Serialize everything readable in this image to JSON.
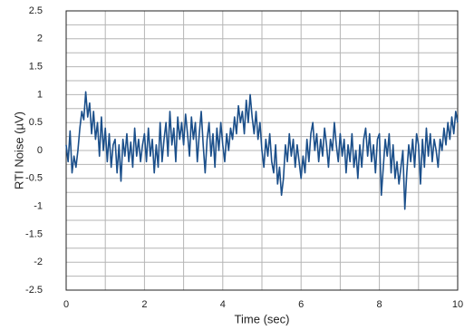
{
  "chart_data": {
    "type": "line",
    "x_label": "Time (sec)",
    "y_label": "RTI Noise (µV)",
    "color": "#1b4f8a",
    "grid": true,
    "xlim": [
      0,
      10
    ],
    "xticks": [
      0,
      2,
      4,
      6,
      8,
      10
    ],
    "xminor": [
      1,
      3,
      5,
      7,
      9
    ],
    "ylim": [
      -2.5,
      2.5
    ],
    "yticks": [
      -2.5,
      -2,
      -1.5,
      -1,
      -0.5,
      0,
      0.5,
      1,
      1.5,
      2,
      2.5
    ],
    "yminor": [
      -2.25,
      -1.75,
      -1.25,
      -0.75,
      -0.25,
      0.25,
      0.75,
      1.25,
      1.75,
      2.25
    ],
    "x": [
      0,
      0.05,
      0.1,
      0.15,
      0.2,
      0.25,
      0.3,
      0.35,
      0.4,
      0.45,
      0.5,
      0.55,
      0.6,
      0.65,
      0.7,
      0.75,
      0.8,
      0.85,
      0.9,
      0.95,
      1,
      1.05,
      1.1,
      1.15,
      1.2,
      1.25,
      1.3,
      1.35,
      1.4,
      1.45,
      1.5,
      1.55,
      1.6,
      1.65,
      1.7,
      1.75,
      1.8,
      1.85,
      1.9,
      1.95,
      2,
      2.05,
      2.1,
      2.15,
      2.2,
      2.25,
      2.3,
      2.35,
      2.4,
      2.45,
      2.5,
      2.55,
      2.6,
      2.65,
      2.7,
      2.75,
      2.8,
      2.85,
      2.9,
      2.95,
      3,
      3.05,
      3.1,
      3.15,
      3.2,
      3.25,
      3.3,
      3.35,
      3.4,
      3.45,
      3.5,
      3.55,
      3.6,
      3.65,
      3.7,
      3.75,
      3.8,
      3.85,
      3.9,
      3.95,
      4,
      4.05,
      4.1,
      4.15,
      4.2,
      4.25,
      4.3,
      4.35,
      4.4,
      4.45,
      4.5,
      4.55,
      4.6,
      4.65,
      4.7,
      4.75,
      4.8,
      4.85,
      4.9,
      4.95,
      5,
      5.05,
      5.1,
      5.15,
      5.2,
      5.25,
      5.3,
      5.35,
      5.4,
      5.45,
      5.5,
      5.55,
      5.6,
      5.65,
      5.7,
      5.75,
      5.8,
      5.85,
      5.9,
      5.95,
      6,
      6.05,
      6.1,
      6.15,
      6.2,
      6.25,
      6.3,
      6.35,
      6.4,
      6.45,
      6.5,
      6.55,
      6.6,
      6.65,
      6.7,
      6.75,
      6.8,
      6.85,
      6.9,
      6.95,
      7,
      7.05,
      7.1,
      7.15,
      7.2,
      7.25,
      7.3,
      7.35,
      7.4,
      7.45,
      7.5,
      7.55,
      7.6,
      7.65,
      7.7,
      7.75,
      7.8,
      7.85,
      7.9,
      7.95,
      8,
      8.05,
      8.1,
      8.15,
      8.2,
      8.25,
      8.3,
      8.35,
      8.4,
      8.45,
      8.5,
      8.55,
      8.6,
      8.65,
      8.7,
      8.75,
      8.8,
      8.85,
      8.9,
      8.95,
      9,
      9.05,
      9.1,
      9.15,
      9.2,
      9.25,
      9.3,
      9.35,
      9.4,
      9.45,
      9.5,
      9.55,
      9.6,
      9.65,
      9.7,
      9.75,
      9.8,
      9.85,
      9.9,
      9.95,
      10
    ],
    "values": [
      0.1,
      -0.2,
      0.35,
      -0.4,
      -0.1,
      -0.3,
      0.0,
      0.4,
      0.7,
      0.55,
      1.05,
      0.6,
      0.85,
      0.3,
      0.7,
      0.2,
      0.5,
      -0.1,
      0.6,
      0.0,
      0.4,
      -0.2,
      0.3,
      -0.3,
      0.1,
      0.2,
      -0.4,
      0.1,
      -0.55,
      0.2,
      -0.1,
      0.3,
      -0.2,
      0.15,
      -0.3,
      0.4,
      -0.1,
      0.2,
      -0.2,
      0.1,
      0.3,
      -0.2,
      0.4,
      -0.1,
      0.2,
      -0.4,
      0.1,
      -0.3,
      0.5,
      -0.2,
      0.2,
      0.5,
      -0.1,
      0.7,
      0.1,
      0.4,
      -0.2,
      0.6,
      0.2,
      0.5,
      0.1,
      0.65,
      0.3,
      -0.1,
      0.6,
      0.2,
      0.5,
      -0.2,
      0.3,
      0.7,
      0.1,
      -0.4,
      0.2,
      0.5,
      -0.1,
      0.3,
      -0.3,
      0.4,
      0.0,
      0.5,
      0.1,
      -0.2,
      0.3,
      0.0,
      0.4,
      0.2,
      0.6,
      0.3,
      0.8,
      0.5,
      0.7,
      0.3,
      0.9,
      0.5,
      1.0,
      0.6,
      0.3,
      0.7,
      0.2,
      0.5,
      0.0,
      -0.3,
      0.2,
      -0.1,
      0.3,
      -0.2,
      -0.4,
      0.1,
      -0.6,
      -0.3,
      -0.8,
      -0.5,
      0.1,
      -0.2,
      0.3,
      -0.1,
      0.2,
      -0.3,
      0.1,
      -0.2,
      -0.5,
      -0.1,
      -0.4,
      0.2,
      -0.2,
      0.3,
      0.5,
      0.0,
      0.3,
      -0.2,
      0.2,
      -0.1,
      0.4,
      0.1,
      -0.3,
      0.2,
      0.0,
      0.5,
      0.1,
      -0.2,
      0.3,
      -0.1,
      0.2,
      -0.4,
      0.1,
      -0.2,
      0.3,
      -0.3,
      0.0,
      -0.5,
      0.1,
      -0.3,
      0.2,
      0.4,
      -0.1,
      0.3,
      -0.2,
      0.1,
      -0.4,
      0.2,
      0.3,
      -0.8,
      -0.3,
      0.2,
      -0.1,
      0.3,
      -0.4,
      0.1,
      -0.5,
      -0.2,
      -0.6,
      -0.3,
      0.0,
      -1.05,
      -0.4,
      0.1,
      -0.2,
      0.2,
      -0.3,
      0.3,
      0.1,
      -0.6,
      0.2,
      -0.3,
      0.4,
      -0.1,
      0.3,
      -0.2,
      0.2,
      0.0,
      -0.3,
      0.2,
      0.0,
      0.4,
      0.1,
      0.5,
      0.2,
      0.6,
      0.3,
      0.7,
      0.5
    ]
  }
}
